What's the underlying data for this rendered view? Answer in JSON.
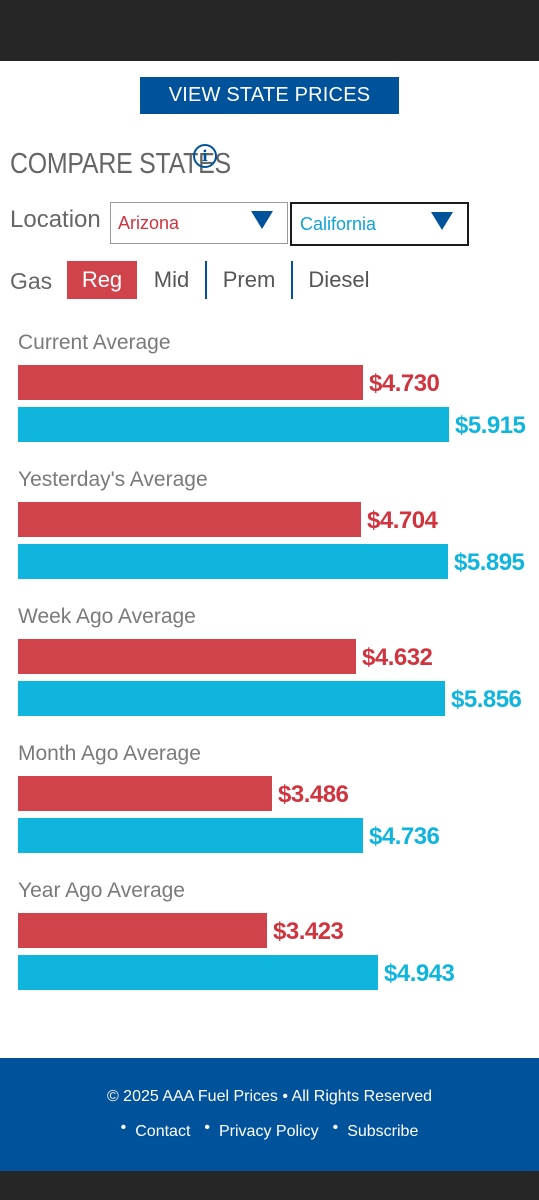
{
  "view_button": "VIEW STATE PRICES",
  "compare": {
    "title": "COMPARE STATES",
    "info_icon": "i"
  },
  "location": {
    "label": "Location",
    "state_1": "Arizona",
    "state_2": "California"
  },
  "gas": {
    "label": "Gas",
    "tabs": [
      "Reg",
      "Mid",
      "Prem",
      "Diesel"
    ],
    "selected": "Reg"
  },
  "colors": {
    "state_1": "#d0434b",
    "state_2": "#0fb5dd",
    "brand": "#00529b"
  },
  "chart_data": {
    "type": "bar",
    "orientation": "horizontal",
    "categories": [
      "Current Average",
      "Yesterday's Average",
      "Week Ago Average",
      "Month Ago Average",
      "Year Ago Average"
    ],
    "series": [
      {
        "name": "Arizona",
        "values": [
          4.73,
          4.704,
          4.632,
          3.486,
          3.423
        ],
        "labels": [
          "$4.730",
          "$4.704",
          "$4.632",
          "$3.486",
          "$3.423"
        ]
      },
      {
        "name": "California",
        "values": [
          5.915,
          5.895,
          5.856,
          4.736,
          4.943
        ],
        "labels": [
          "$5.915",
          "$5.895",
          "$5.856",
          "$4.736",
          "$4.943"
        ]
      }
    ]
  },
  "footer": {
    "copyright": "© 2025 AAA Fuel Prices • All Rights Reserved",
    "links": [
      "Contact",
      "Privacy Policy",
      "Subscribe"
    ],
    "bullet": "•"
  }
}
